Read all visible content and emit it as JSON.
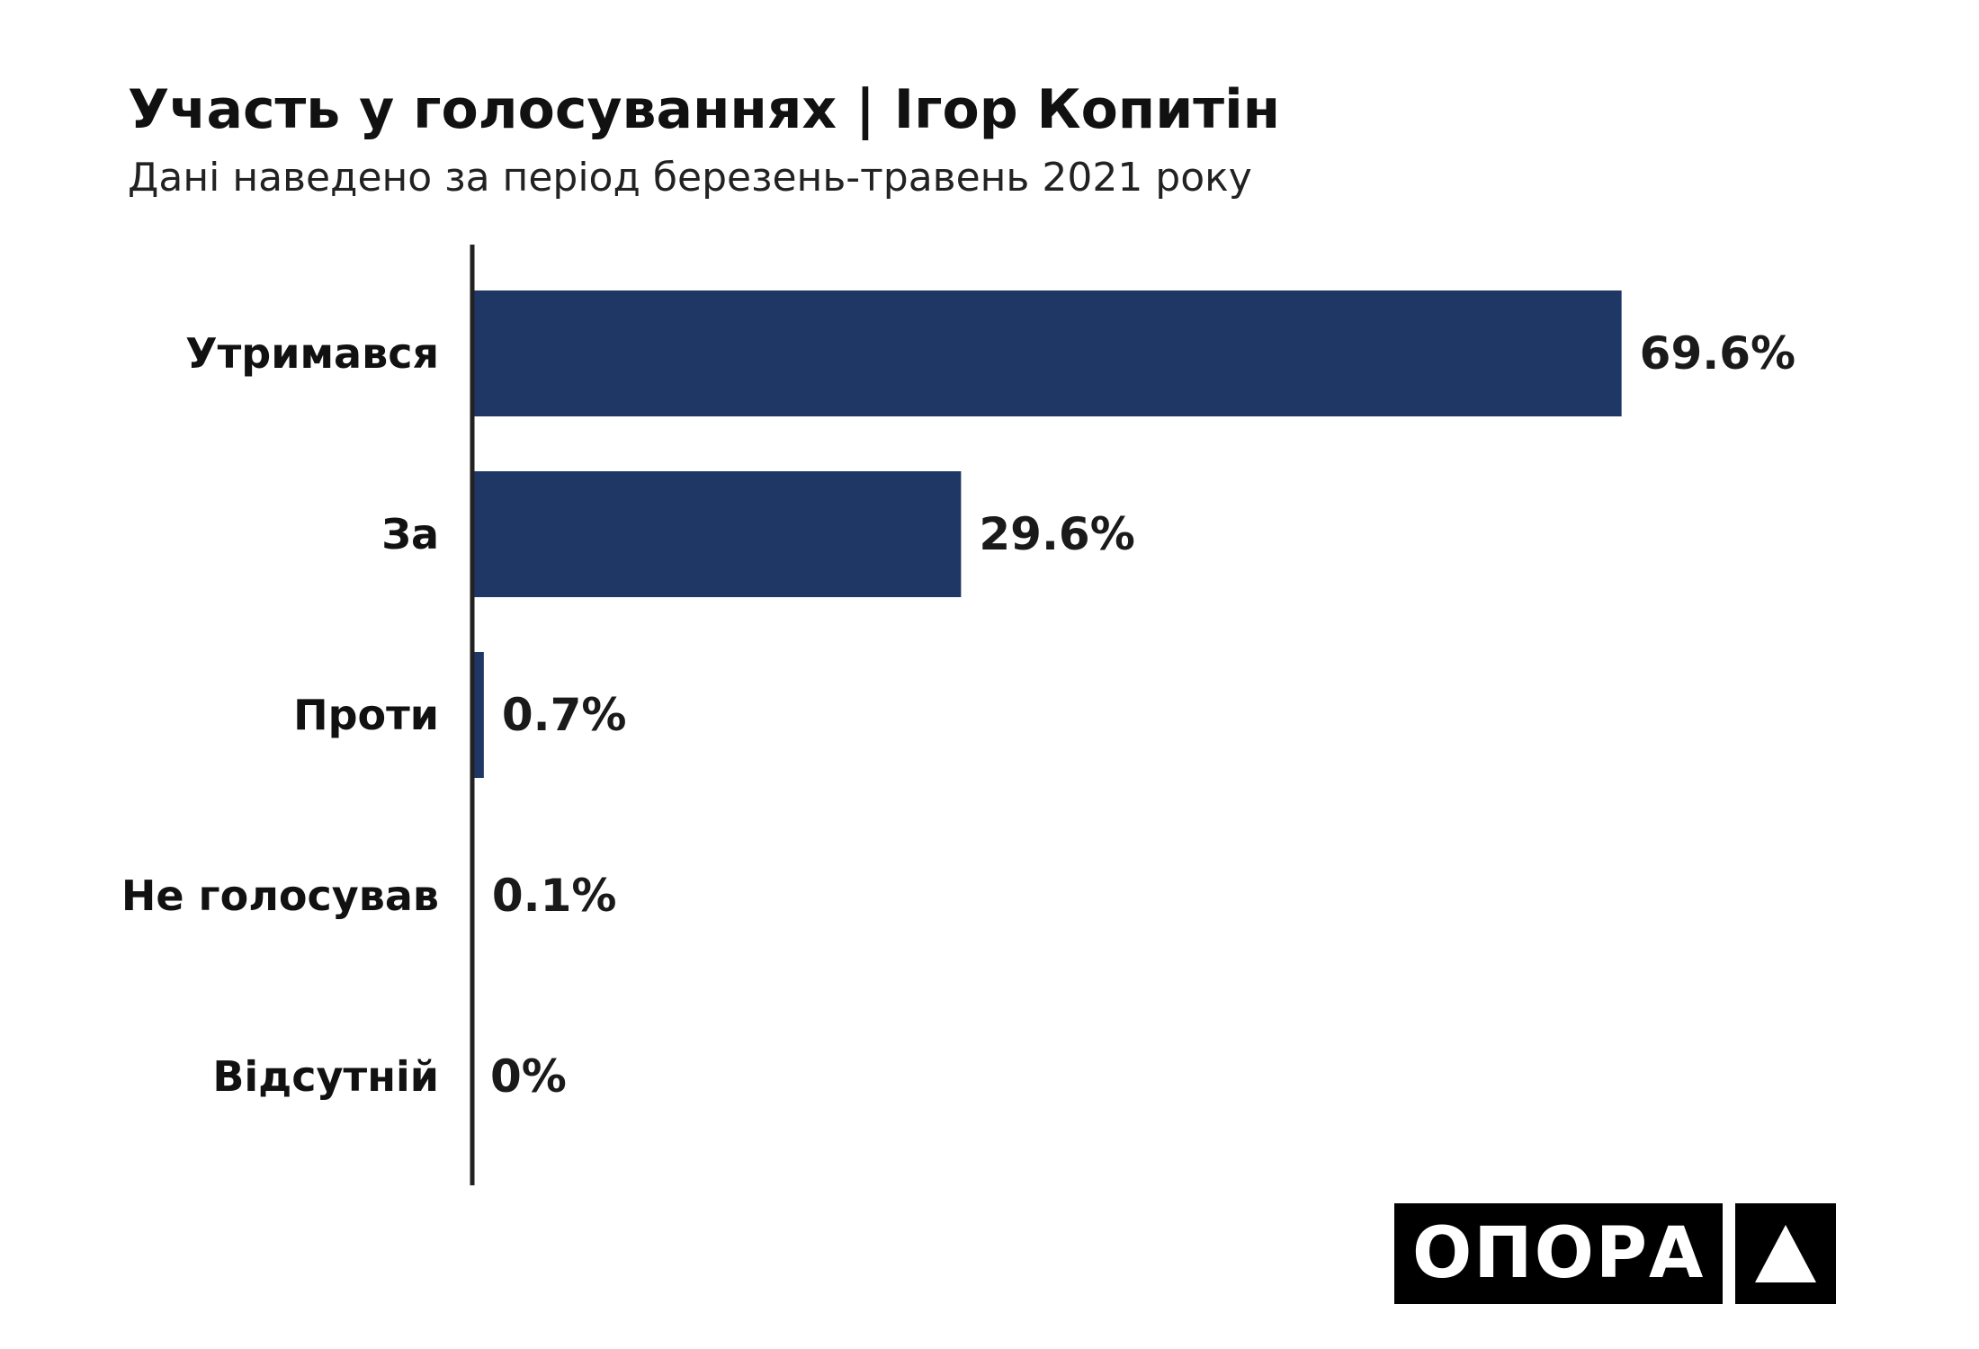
{
  "chart_data": {
    "type": "bar",
    "orientation": "horizontal",
    "title": "Участь у голосуваннях | Ігор Копитін",
    "subtitle": "Дані наведено за період березень-травень 2021 року",
    "categories": [
      "Утримався",
      "За",
      "Проти",
      "Не голосував",
      "Відсутній"
    ],
    "values": [
      69.6,
      29.6,
      0.7,
      0.1,
      0
    ],
    "value_labels": [
      "69.6%",
      "29.6%",
      "0.7%",
      "0.1%",
      "0%"
    ],
    "xlim": [
      0,
      70
    ],
    "grid": false,
    "legend": "none",
    "bar_color": "#1f3765"
  },
  "logo": {
    "text": "ОПОРА"
  }
}
